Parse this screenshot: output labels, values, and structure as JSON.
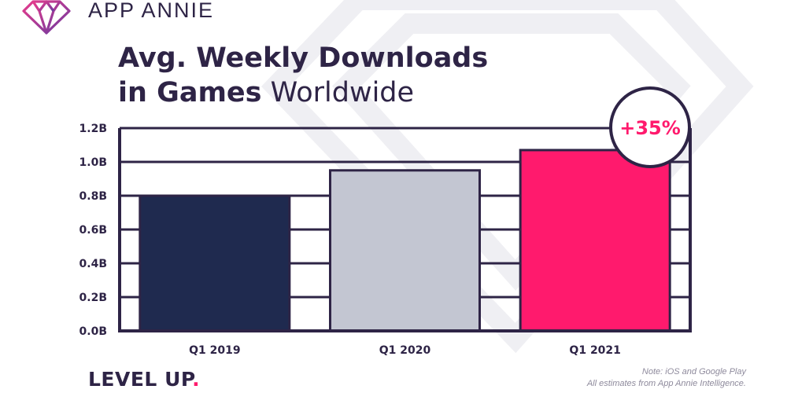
{
  "brand": {
    "name": "APP ANNIE",
    "logo_icon": "diamond-logo-icon",
    "colors": {
      "magenta": "#e63b8c",
      "purple": "#6b3aa0",
      "navy": "#2e2446"
    }
  },
  "title": {
    "line1": "Avg. Weekly Downloads",
    "line2_bold": "in Games",
    "line2_light": "Worldwide"
  },
  "badge": {
    "text": "+35%",
    "color": "#ff1a6d"
  },
  "footer": {
    "tagline": "LEVEL UP",
    "tagline_dot": ".",
    "note_line1": "Note: iOS and Google Play",
    "note_line2": "All estimates from App Annie Intelligence."
  },
  "chart_data": {
    "type": "bar",
    "title": "Avg. Weekly Downloads in Games Worldwide",
    "categories": [
      "Q1 2019",
      "Q1 2020",
      "Q1 2021"
    ],
    "values": [
      0.8,
      0.95,
      1.07
    ],
    "unit": "B",
    "colors": [
      "#1f2a4f",
      "#c3c6d2",
      "#ff1a6d"
    ],
    "ylim": [
      0,
      1.2
    ],
    "yticks": [
      "0.0B",
      "0.2B",
      "0.4B",
      "0.6B",
      "0.8B",
      "1.0B",
      "1.2B"
    ],
    "xlabel": "",
    "ylabel": "",
    "grid": true,
    "annotation": "+35%"
  }
}
